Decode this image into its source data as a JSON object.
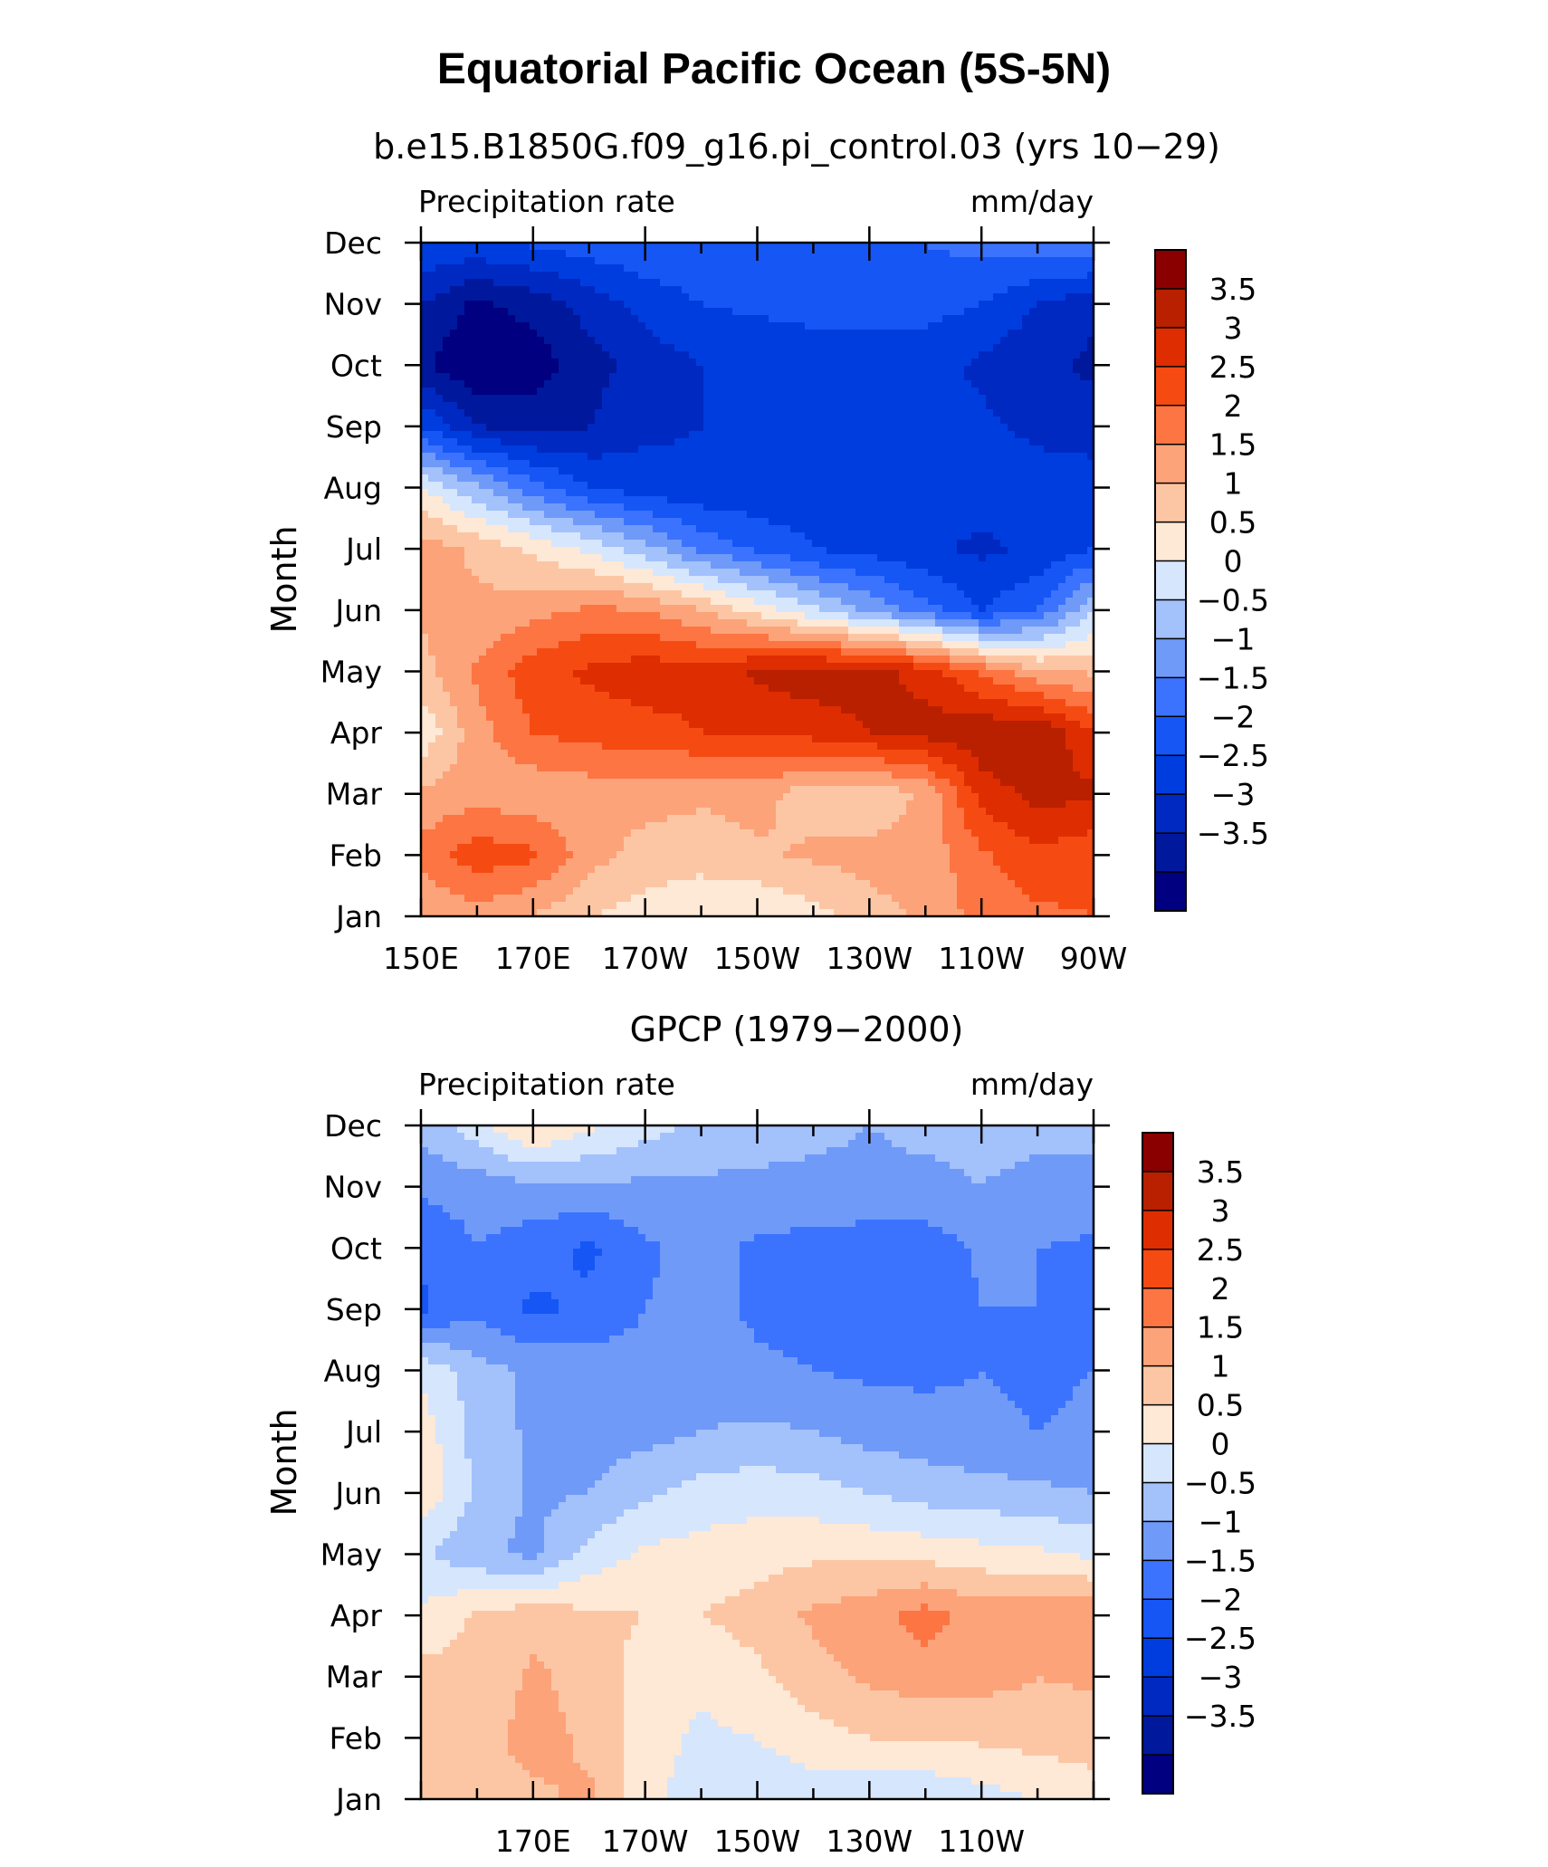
{
  "figure": {
    "title": "Equatorial Pacific Ocean (5S-5N)"
  },
  "chart_data": [
    {
      "type": "heatmap",
      "title": "b.e15.B1850G.f09_g16.pi_control.03 (yrs 10−29)",
      "left_label": "Precipitation rate",
      "right_label": "mm/day",
      "xlabel": "",
      "ylabel": "Month",
      "x_ticks": [
        "150E",
        "170E",
        "170W",
        "150W",
        "130W",
        "110W",
        "90W"
      ],
      "y_ticks": [
        "Jan",
        "Feb",
        "Mar",
        "Apr",
        "May",
        "Jun",
        "Jul",
        "Aug",
        "Sep",
        "Oct",
        "Nov",
        "Dec"
      ],
      "x_lon": [
        150,
        160,
        170,
        180,
        190,
        200,
        210,
        220,
        230,
        240,
        250,
        260,
        270
      ],
      "months": [
        "Jan",
        "Feb",
        "Mar",
        "Apr",
        "May",
        "Jun",
        "Jul",
        "Aug",
        "Sep",
        "Oct",
        "Nov",
        "Dec"
      ],
      "z": [
        [
          1.5,
          1.8,
          1.5,
          1.0,
          0.8,
          0.6,
          0.5,
          0.8,
          1.3,
          1.6,
          2.2,
          2.4,
          2.5
        ],
        [
          2.2,
          2.8,
          2.6,
          1.7,
          1.3,
          1.2,
          1.4,
          1.6,
          1.7,
          1.7,
          2.4,
          2.9,
          2.6
        ],
        [
          1.6,
          1.8,
          1.6,
          1.7,
          1.7,
          1.6,
          1.7,
          1.2,
          1.1,
          1.6,
          3.2,
          3.7,
          3.6
        ],
        [
          0.6,
          1.8,
          2.5,
          2.7,
          2.8,
          3.0,
          3.1,
          3.2,
          3.5,
          3.7,
          3.9,
          4.0,
          3.0
        ],
        [
          1.3,
          2.1,
          2.8,
          3.1,
          3.3,
          3.2,
          3.6,
          3.8,
          3.7,
          3.3,
          2.4,
          1.6,
          1.4
        ],
        [
          1.6,
          1.6,
          1.8,
          2.1,
          2.0,
          1.5,
          0.8,
          0.1,
          -0.6,
          -1.3,
          -2.0,
          -1.5,
          0.0
        ],
        [
          1.8,
          1.4,
          0.9,
          0.4,
          -0.3,
          -1.1,
          -1.6,
          -2.0,
          -2.2,
          -2.4,
          -2.6,
          -2.4,
          -2.0
        ],
        [
          0.5,
          -0.4,
          -1.3,
          -2.0,
          -2.3,
          -2.4,
          -2.4,
          -2.3,
          -2.3,
          -2.3,
          -2.3,
          -2.3,
          -2.2
        ],
        [
          -2.0,
          -3.0,
          -3.2,
          -3.0,
          -2.6,
          -2.5,
          -2.4,
          -2.4,
          -2.4,
          -2.4,
          -2.4,
          -2.6,
          -2.8
        ],
        [
          -3.4,
          -4.0,
          -3.8,
          -3.2,
          -2.8,
          -2.5,
          -2.4,
          -2.3,
          -2.3,
          -2.3,
          -2.6,
          -2.9,
          -3.1
        ],
        [
          -3.0,
          -3.6,
          -3.3,
          -2.8,
          -2.3,
          -2.0,
          -1.9,
          -1.8,
          -1.8,
          -1.8,
          -2.0,
          -2.5,
          -2.9
        ],
        [
          -2.0,
          -2.1,
          -1.9,
          -1.7,
          -1.6,
          -1.6,
          -1.7,
          -1.5,
          -1.5,
          -1.5,
          -1.3,
          -1.2,
          -1.0
        ]
      ],
      "colorbar_labels": [
        "3.5",
        "3",
        "2.5",
        "2",
        "1.5",
        "1",
        "0.5",
        "0",
        "−0.5",
        "−1",
        "−1.5",
        "−2",
        "−2.5",
        "−3",
        "−3.5"
      ],
      "levels": [
        -3.5,
        -3,
        -2.5,
        -2,
        -1.5,
        -1,
        -0.5,
        0,
        0.5,
        1,
        1.5,
        2,
        2.5,
        3,
        3.5
      ],
      "level_colors": [
        "#000080",
        "#00189c",
        "#0029c2",
        "#003dde",
        "#1556f5",
        "#3b73ff",
        "#6f9af8",
        "#a3c1fb",
        "#d6e6fd",
        "#fee8d6",
        "#fcc6a4",
        "#fca37a",
        "#fc7543",
        "#f54b12",
        "#de2d00",
        "#b82000",
        "#8a0000"
      ]
    },
    {
      "type": "heatmap",
      "title": "GPCP (1979−2000)",
      "left_label": "Precipitation rate",
      "right_label": "mm/day",
      "xlabel": "",
      "ylabel": "Month",
      "x_ticks": [
        "170E",
        "170W",
        "150W",
        "130W",
        "110W"
      ],
      "y_ticks": [
        "Jan",
        "Feb",
        "Mar",
        "Apr",
        "May",
        "Jun",
        "Jul",
        "Aug",
        "Sep",
        "Oct",
        "Nov",
        "Dec"
      ],
      "x_lon": [
        150,
        160,
        170,
        180,
        190,
        200,
        210,
        220,
        230,
        240,
        250,
        260,
        270
      ],
      "months": [
        "Jan",
        "Feb",
        "Mar",
        "Apr",
        "May",
        "Jun",
        "Jul",
        "Aug",
        "Sep",
        "Oct",
        "Nov",
        "Dec"
      ],
      "z": [
        [
          1.2,
          1.3,
          1.4,
          1.6,
          0.6,
          0.3,
          0.2,
          0.2,
          0.1,
          0.1,
          0.3,
          0.5,
          0.8
        ],
        [
          1.1,
          1.3,
          1.7,
          1.4,
          0.7,
          0.4,
          0.5,
          0.8,
          1.0,
          1.0,
          1.1,
          1.2,
          1.2
        ],
        [
          1.2,
          1.1,
          1.6,
          1.3,
          0.8,
          0.6,
          0.9,
          1.3,
          1.6,
          1.8,
          1.7,
          1.5,
          1.6
        ],
        [
          0.6,
          1.1,
          1.3,
          1.1,
          1.0,
          1.0,
          1.2,
          1.6,
          1.8,
          2.2,
          1.8,
          2.0,
          1.9
        ],
        [
          0.1,
          -0.4,
          -0.6,
          0.2,
          0.6,
          0.7,
          0.8,
          0.9,
          0.9,
          0.8,
          0.7,
          0.6,
          0.4
        ],
        [
          0.9,
          -0.1,
          -0.6,
          -0.5,
          -0.1,
          0.2,
          0.3,
          0.2,
          0.0,
          -0.2,
          -0.3,
          -0.4,
          -0.5
        ],
        [
          0.8,
          -0.2,
          -0.6,
          -0.7,
          -0.7,
          -0.5,
          -0.4,
          -0.5,
          -0.7,
          -0.8,
          -0.9,
          -1.0,
          -0.9
        ],
        [
          0.4,
          -0.3,
          -0.6,
          -0.7,
          -0.8,
          -0.8,
          -0.9,
          -1.0,
          -1.1,
          -1.1,
          -1.0,
          -1.1,
          -1.0
        ],
        [
          -1.6,
          -1.1,
          -1.6,
          -1.4,
          -1.0,
          -0.8,
          -1.1,
          -1.2,
          -1.3,
          -1.4,
          -1.0,
          -1.0,
          -1.0
        ],
        [
          -1.4,
          -1.0,
          -1.3,
          -1.6,
          -1.1,
          -0.8,
          -1.1,
          -1.2,
          -1.3,
          -1.3,
          -0.9,
          -1.0,
          -1.1
        ],
        [
          -0.9,
          -0.8,
          -0.6,
          -0.6,
          -0.6,
          -0.6,
          -0.6,
          -0.6,
          -0.6,
          -0.6,
          -0.5,
          -0.6,
          -0.6
        ],
        [
          -0.3,
          0.3,
          1.1,
          0.6,
          0.2,
          -0.1,
          -0.3,
          -0.4,
          -0.5,
          -0.4,
          -0.4,
          -0.4,
          -0.4
        ]
      ],
      "colorbar_labels": [
        "3.5",
        "3",
        "2.5",
        "2",
        "1.5",
        "1",
        "0.5",
        "0",
        "−0.5",
        "−1",
        "−1.5",
        "−2",
        "−2.5",
        "−3",
        "−3.5"
      ],
      "levels": [
        -3.5,
        -3,
        -2.5,
        -2,
        -1.5,
        -1,
        -0.5,
        0,
        0.5,
        1,
        1.5,
        2,
        2.5,
        3,
        3.5
      ],
      "level_colors": [
        "#000080",
        "#00189c",
        "#0029c2",
        "#003dde",
        "#1556f5",
        "#3b73ff",
        "#6f9af8",
        "#a3c1fb",
        "#d6e6fd",
        "#fee8d6",
        "#fcc6a4",
        "#fca37a",
        "#fc7543",
        "#f54b12",
        "#de2d00",
        "#b82000",
        "#8a0000"
      ]
    }
  ]
}
